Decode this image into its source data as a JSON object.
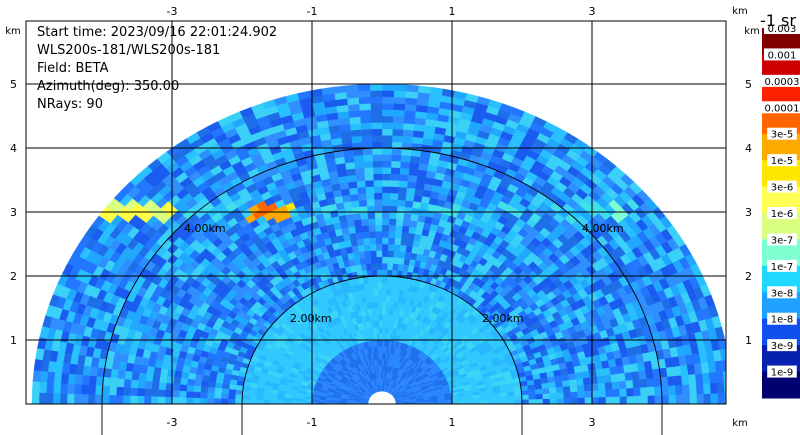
{
  "chart_data": {
    "type": "heatmap",
    "subtype": "radar-rhi-polar",
    "info_lines": [
      "Start time: 2023/09/16 22:01:24.902",
      "WLS200s-181/WLS200s-181",
      "Field: BETA",
      "Azimuth(deg): 350.00",
      "NRays: 90"
    ],
    "x_unit": "km",
    "y_unit": "km",
    "x_ticks": [
      -3,
      -1,
      1,
      3
    ],
    "y_ticks": [
      1,
      2,
      3,
      4,
      5
    ],
    "xlim": [
      -3.6,
      3.6
    ],
    "ylim": [
      0,
      6
    ],
    "range_rings_km": [
      2,
      4
    ],
    "range_ring_labels": [
      "2.00km",
      "4.00km"
    ],
    "max_range_km": 5.0,
    "colorbar": {
      "title": "-1 sr",
      "labels": [
        "0.003",
        "0.001",
        "0.0003",
        "0.0001",
        "3e-5",
        "1e-5",
        "3e-6",
        "1e-6",
        "3e-7",
        "1e-7",
        "3e-8",
        "1e-8",
        "3e-9",
        "1e-9"
      ],
      "colors": [
        "#800000",
        "#cc0000",
        "#ff2200",
        "#ff6600",
        "#ffaa00",
        "#ffe600",
        "#ffff55",
        "#d8ff80",
        "#80ffd0",
        "#20d8ff",
        "#20a0ff",
        "#1050ee",
        "#0820b0",
        "#000070"
      ]
    },
    "features": [
      {
        "name": "aerosol-layer-left",
        "height_km": 3.0,
        "x_range_km": [
          -3.6,
          -3.0
        ],
        "level": "3e-6"
      },
      {
        "name": "aerosol-layer-center",
        "height_km": 3.0,
        "x_range_km": [
          -1.9,
          -1.3
        ],
        "level": "1e-5"
      },
      {
        "name": "near-ground-region",
        "height_km": 0.6,
        "x_range_km": [
          -1.0,
          1.0
        ],
        "level": "3e-7"
      }
    ]
  }
}
